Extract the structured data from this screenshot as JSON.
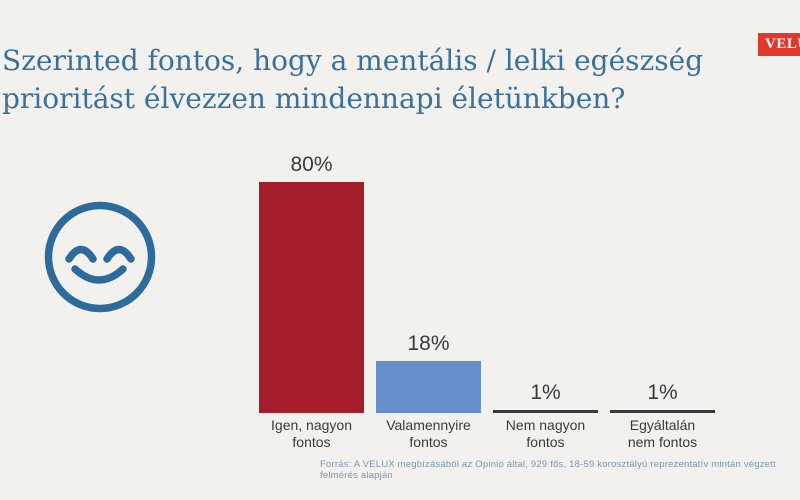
{
  "header": {
    "title_line1": "Szerinted fontos, hogy a mentális / lelki egészség",
    "title_line2": "prioritást élvezzen mindennapi életünkben?",
    "title_color": "#39719E",
    "logo_text": "VELUX",
    "logo_color": "#E0382C"
  },
  "smiley": {
    "description": "smiling face outline",
    "color": "#2E6B9D"
  },
  "chart_data": {
    "type": "bar",
    "title": "Szerinted fontos, hogy a mentális / lelki egészség prioritást élvezzen mindennapi életünkben?",
    "categories": [
      "Igen, nagyon\nfontos",
      "Valamennyire\nfontos",
      "Nem nagyon\nfontos",
      "Egyáltalán\nnem fontos"
    ],
    "values": [
      80,
      18,
      1,
      1
    ],
    "value_labels": [
      "80%",
      "18%",
      "1%",
      "1%"
    ],
    "bar_colors": [
      "#A31D2A",
      "#6690CC",
      "#3B3B3B",
      "#3B3B3B"
    ],
    "xlabel": "",
    "ylabel": "",
    "ylim": [
      0,
      100
    ],
    "axes": "hidden",
    "grid": "off",
    "legend": "none"
  },
  "footer": {
    "source": "Forrás: A VELUX megbízásából az Opinio által, 929 fős, 18-59 korosztályú reprezentatív mintán végzett felmérés alapján"
  }
}
